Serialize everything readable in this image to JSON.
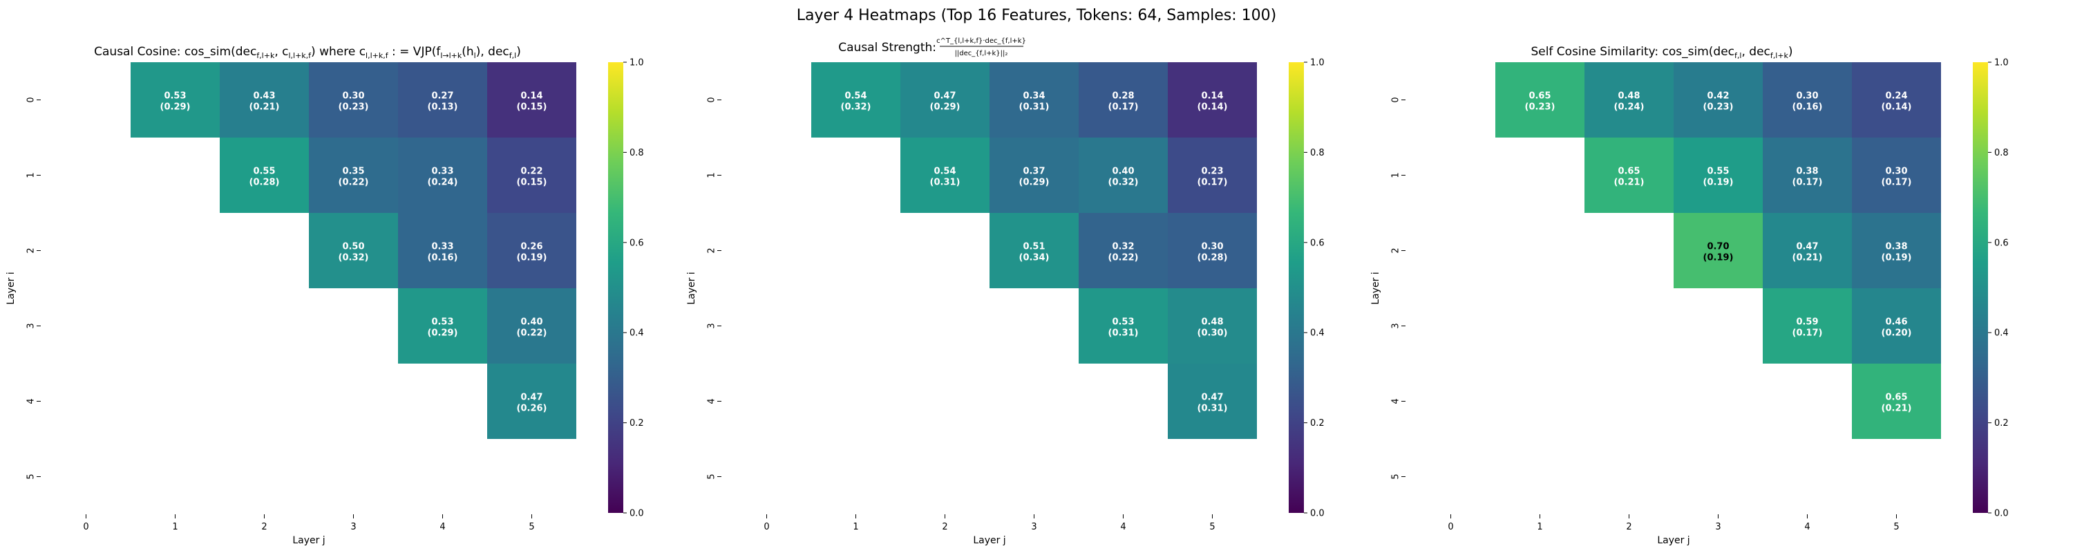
{
  "suptitle": "Layer 4 Heatmaps (Top 16 Features, Tokens: 64, Samples: 100)",
  "colormap": {
    "name": "viridis",
    "stops": [
      "#440154",
      "#482878",
      "#3e4989",
      "#31688e",
      "#26828e",
      "#1f9e89",
      "#35b779",
      "#6ece58",
      "#b5de2b",
      "#fde725"
    ]
  },
  "chart_data": [
    {
      "type": "heatmap",
      "title_parts": [
        {
          "t": "Causal Cosine: cos_sim(dec"
        },
        {
          "t": "f,l+k",
          "sub": true
        },
        {
          "t": ", c"
        },
        {
          "t": "l,l+k,f",
          "sub": true
        },
        {
          "t": ") where c"
        },
        {
          "t": "l,l+k,f",
          "sub": true
        },
        {
          "t": " : = VJP(f"
        },
        {
          "t": "l→l+k",
          "sub": true
        },
        {
          "t": "(h"
        },
        {
          "t": "l",
          "sub": true
        },
        {
          "t": "), dec"
        },
        {
          "t": "f,l",
          "sub": true
        },
        {
          "t": ")"
        }
      ],
      "xlabel": "Layer j",
      "ylabel": "Layer i",
      "x_ticks": [
        "0",
        "1",
        "2",
        "3",
        "4",
        "5"
      ],
      "y_ticks": [
        "0",
        "1",
        "2",
        "3",
        "4",
        "5"
      ],
      "vmin": 0,
      "vmax": 1,
      "colorbar_ticks": [
        "0.0",
        "0.2",
        "0.4",
        "0.6",
        "0.8",
        "1.0"
      ],
      "mean": [
        [
          null,
          0.53,
          0.43,
          0.3,
          0.27,
          0.14
        ],
        [
          null,
          null,
          0.55,
          0.35,
          0.33,
          0.22
        ],
        [
          null,
          null,
          null,
          0.5,
          0.33,
          0.26
        ],
        [
          null,
          null,
          null,
          null,
          0.53,
          0.4
        ],
        [
          null,
          null,
          null,
          null,
          null,
          0.47
        ],
        [
          null,
          null,
          null,
          null,
          null,
          null
        ]
      ],
      "std": [
        [
          null,
          0.29,
          0.21,
          0.23,
          0.13,
          0.15
        ],
        [
          null,
          null,
          0.28,
          0.22,
          0.24,
          0.15
        ],
        [
          null,
          null,
          null,
          0.32,
          0.16,
          0.19
        ],
        [
          null,
          null,
          null,
          null,
          0.29,
          0.22
        ],
        [
          null,
          null,
          null,
          null,
          null,
          0.26
        ],
        [
          null,
          null,
          null,
          null,
          null,
          null
        ]
      ]
    },
    {
      "type": "heatmap",
      "title_parts": [
        {
          "t": "Causal Strength: "
        },
        {
          "t": "c",
          "frac": "num"
        },
        {
          "t": "T",
          "sup": true
        },
        {
          "t": "l,l+k,f",
          "sub": true
        },
        {
          "t": "·dec",
          "frac": "num"
        },
        {
          "t": "f,l+k",
          "sub": true
        },
        {
          "t": "||dec",
          "frac": "den"
        },
        {
          "t": "f,l+k",
          "sub": true
        },
        {
          "t": "||₂",
          "frac": "den"
        }
      ],
      "title_frac": {
        "num": "c^T_{l,l+k,f}·dec_{f,l+k}",
        "den": "||dec_{f,l+k}||₂"
      },
      "xlabel": "Layer j",
      "ylabel": "Layer i",
      "x_ticks": [
        "0",
        "1",
        "2",
        "3",
        "4",
        "5"
      ],
      "y_ticks": [
        "0",
        "1",
        "2",
        "3",
        "4",
        "5"
      ],
      "vmin": 0,
      "vmax": 1,
      "colorbar_ticks": [
        "0.0",
        "0.2",
        "0.4",
        "0.6",
        "0.8",
        "1.0"
      ],
      "mean": [
        [
          null,
          0.54,
          0.47,
          0.34,
          0.28,
          0.14
        ],
        [
          null,
          null,
          0.54,
          0.37,
          0.4,
          0.23
        ],
        [
          null,
          null,
          null,
          0.51,
          0.32,
          0.3
        ],
        [
          null,
          null,
          null,
          null,
          0.53,
          0.48
        ],
        [
          null,
          null,
          null,
          null,
          null,
          0.47
        ],
        [
          null,
          null,
          null,
          null,
          null,
          null
        ]
      ],
      "std": [
        [
          null,
          0.32,
          0.29,
          0.31,
          0.17,
          0.14
        ],
        [
          null,
          null,
          0.31,
          0.29,
          0.32,
          0.17
        ],
        [
          null,
          null,
          null,
          0.34,
          0.22,
          0.28
        ],
        [
          null,
          null,
          null,
          null,
          0.31,
          0.3
        ],
        [
          null,
          null,
          null,
          null,
          null,
          0.31
        ],
        [
          null,
          null,
          null,
          null,
          null,
          null
        ]
      ]
    },
    {
      "type": "heatmap",
      "title_parts": [
        {
          "t": "Self Cosine Similarity: cos_sim(dec"
        },
        {
          "t": "f,l",
          "sub": true
        },
        {
          "t": ", dec"
        },
        {
          "t": "f,l+k",
          "sub": true
        },
        {
          "t": ")"
        }
      ],
      "xlabel": "Layer j",
      "ylabel": "Layer i",
      "x_ticks": [
        "0",
        "1",
        "2",
        "3",
        "4",
        "5"
      ],
      "y_ticks": [
        "0",
        "1",
        "2",
        "3",
        "4",
        "5"
      ],
      "vmin": 0,
      "vmax": 1,
      "colorbar_ticks": [
        "0.0",
        "0.2",
        "0.4",
        "0.6",
        "0.8",
        "1.0"
      ],
      "mean": [
        [
          null,
          0.65,
          0.48,
          0.42,
          0.3,
          0.24
        ],
        [
          null,
          null,
          0.65,
          0.55,
          0.38,
          0.3
        ],
        [
          null,
          null,
          null,
          0.7,
          0.47,
          0.38
        ],
        [
          null,
          null,
          null,
          null,
          0.59,
          0.46
        ],
        [
          null,
          null,
          null,
          null,
          null,
          0.65
        ],
        [
          null,
          null,
          null,
          null,
          null,
          null
        ]
      ],
      "std": [
        [
          null,
          0.23,
          0.24,
          0.23,
          0.16,
          0.14
        ],
        [
          null,
          null,
          0.21,
          0.19,
          0.17,
          0.17
        ],
        [
          null,
          null,
          null,
          0.19,
          0.21,
          0.19
        ],
        [
          null,
          null,
          null,
          null,
          0.17,
          0.2
        ],
        [
          null,
          null,
          null,
          null,
          null,
          0.21
        ],
        [
          null,
          null,
          null,
          null,
          null,
          null
        ]
      ]
    }
  ]
}
